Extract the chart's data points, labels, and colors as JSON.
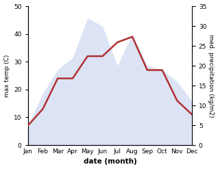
{
  "months": [
    "Jan",
    "Feb",
    "Mar",
    "Apr",
    "May",
    "Jun",
    "Jul",
    "Aug",
    "Sep",
    "Oct",
    "Nov",
    "Dec"
  ],
  "temperature": [
    7,
    13,
    24,
    24,
    32,
    32,
    37,
    39,
    27,
    27,
    16,
    11
  ],
  "precipitation": [
    5,
    13,
    19,
    22,
    32,
    30,
    20,
    28,
    20,
    19,
    16,
    11
  ],
  "temp_ylim": [
    0,
    50
  ],
  "precip_ylim": [
    0,
    35
  ],
  "temp_ticks": [
    0,
    10,
    20,
    30,
    40,
    50
  ],
  "precip_ticks": [
    0,
    5,
    10,
    15,
    20,
    25,
    30,
    35
  ],
  "temp_color": "#b03030",
  "precip_fill_color": "#c0ccee",
  "xlabel": "date (month)",
  "ylabel_left": "max temp (C)",
  "ylabel_right": "med. precipitation (kg/m2)",
  "line_width": 1.8,
  "fill_alpha": 0.55
}
